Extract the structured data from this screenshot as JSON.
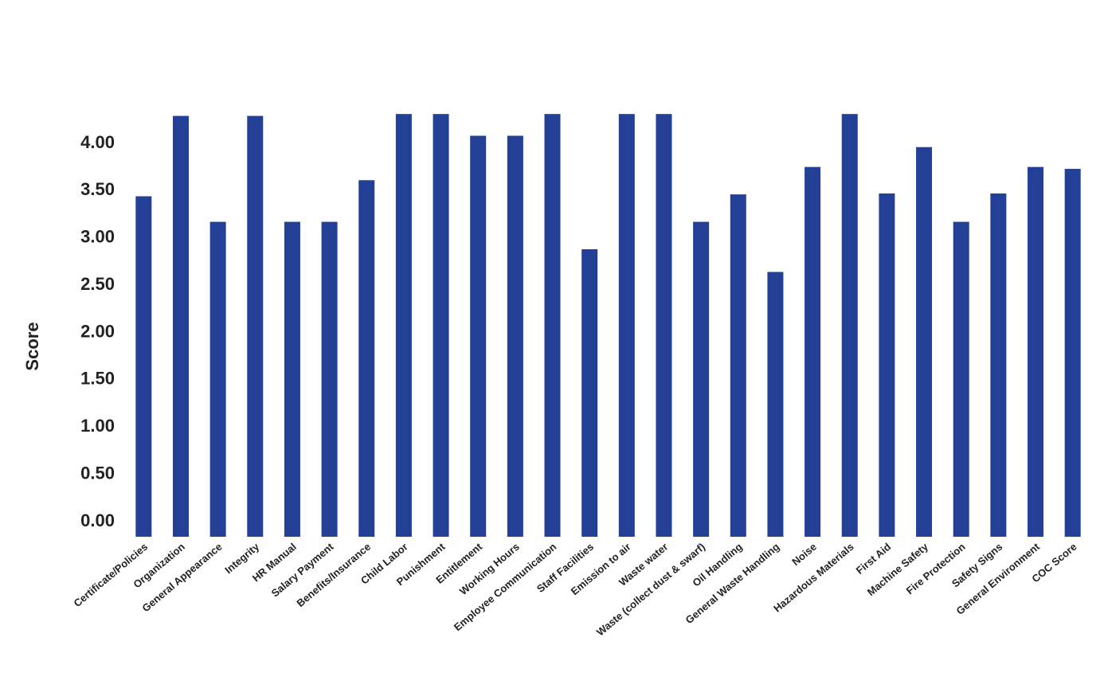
{
  "chart_data": {
    "type": "bar",
    "y_label": "Score",
    "categories": [
      "Certificate/Policies",
      "Organization",
      "General Appearance",
      "Integrity",
      "HR Manual",
      "Salary Payment",
      "Benefits/Insurance",
      "Child Labor",
      "Punishment",
      "Entitlement",
      "Working Hours",
      "Employee Communication",
      "Staff Facilities",
      "Emission to air",
      "Waste water",
      "Waste (collect dust & swarf)",
      "Oil Handling",
      "General Waste Handling",
      "Noise",
      "Hazardous Materials",
      "First Aid",
      "Machine Safety",
      "Fire Protection",
      "Safety Signs",
      "General Environment",
      "COC Score"
    ],
    "values": [
      3.44,
      4.29,
      3.17,
      4.29,
      3.17,
      3.17,
      3.61,
      4.31,
      4.31,
      4.08,
      4.08,
      4.31,
      2.88,
      4.31,
      4.31,
      3.17,
      3.46,
      2.64,
      3.75,
      4.31,
      3.47,
      3.96,
      3.17,
      3.47,
      3.75,
      3.73
    ],
    "color": "#233f96",
    "ylim": [
      -0.16,
      4.5
    ],
    "yticks": [
      {
        "value": 0,
        "label": "0.00"
      },
      {
        "value": 0.5,
        "label": "0.50"
      },
      {
        "value": 1,
        "label": "1.00"
      },
      {
        "value": 1.5,
        "label": "1.50"
      },
      {
        "value": 2,
        "label": "2.00"
      },
      {
        "value": 2.5,
        "label": "2.50"
      },
      {
        "value": 3,
        "label": "3.00"
      },
      {
        "value": 3.5,
        "label": "3.50"
      },
      {
        "value": 4,
        "label": "4.00"
      }
    ],
    "grid": false
  }
}
